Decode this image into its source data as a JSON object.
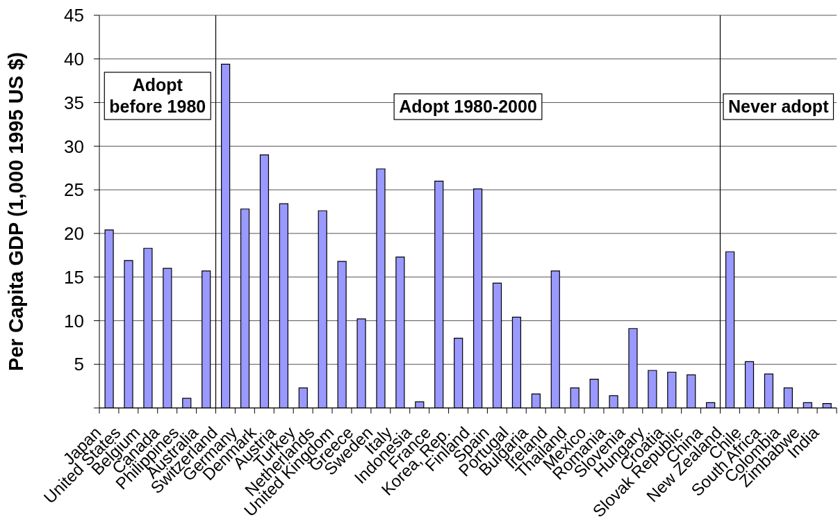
{
  "chart_data": {
    "type": "bar",
    "ylabel": "Per Capita GDP (1,000 1995 US $)",
    "categories": [
      "Japan",
      "United States",
      "Belgium",
      "Canada",
      "Philippines",
      "Australia",
      "Switzerland",
      "Germany",
      "Denmark",
      "Austria",
      "Turkey",
      "Netherlands",
      "United Kingdom",
      "Greece",
      "Sweden",
      "Italy",
      "Indonesia",
      "France",
      "Korea, Rep.",
      "Finland",
      "Spain",
      "Portugal",
      "Bulgaria",
      "Ireland",
      "Thailand",
      "Mexico",
      "Romania",
      "Slovenia",
      "Hungary",
      "Croatia",
      "Slovak Republic",
      "China",
      "New Zealand",
      "Chile",
      "South Africa",
      "Colombia",
      "Zimbabwe",
      "India"
    ],
    "values": [
      20.4,
      16.9,
      18.3,
      16.0,
      1.1,
      15.7,
      39.4,
      22.8,
      29.0,
      23.4,
      2.3,
      22.6,
      16.8,
      10.2,
      27.4,
      17.3,
      0.7,
      26.0,
      8.0,
      25.1,
      14.3,
      10.4,
      1.6,
      15.7,
      2.3,
      3.3,
      1.4,
      9.1,
      4.3,
      4.1,
      3.8,
      0.6,
      17.9,
      5.3,
      3.9,
      2.3,
      0.6,
      0.5
    ],
    "color": "#9999ff",
    "ylim": [
      0,
      45
    ],
    "yticks": [
      {
        "value": 0,
        "label": null
      },
      5,
      10,
      15,
      20,
      25,
      30,
      35,
      40,
      45
    ],
    "grid": "y",
    "ref_lines": [
      {
        "axis": "x",
        "value": "Switzerland"
      },
      {
        "axis": "x",
        "value": "New Zealand"
      }
    ],
    "annotations": [
      "Adopt before 1980",
      "Adopt 1980-2000",
      "Never adopt"
    ]
  }
}
